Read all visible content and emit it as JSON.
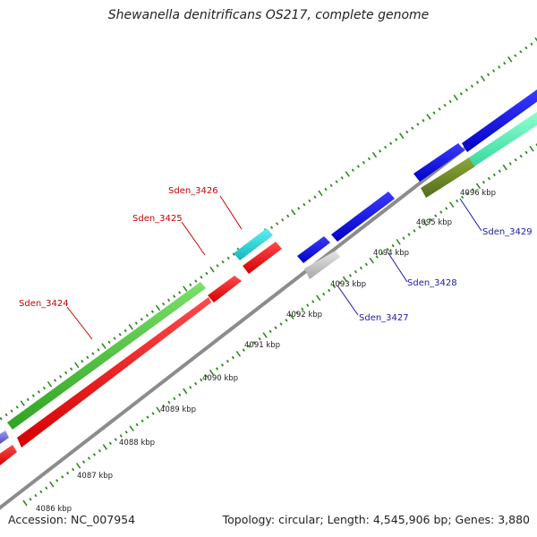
{
  "title": "Shewanella denitrificans OS217, complete genome",
  "footer": {
    "accession": "Accession: NC_007954",
    "summary": "Topology: circular; Length: 4,545,906 bp; Genes: 3,880"
  },
  "colors": {
    "backbone": "#8c8c8c",
    "tick": "#2e8b1e",
    "label_forward": "#cc0000",
    "label_reverse": "#1a1aa8"
  },
  "scale_labels": [
    "4086 kbp",
    "4087 kbp",
    "4088 kbp",
    "4089 kbp",
    "4090 kbp",
    "4091 kbp",
    "4092 kbp",
    "4093 kbp",
    "4094 kbp",
    "4095 kbp",
    "4096 kbp"
  ],
  "genes": [
    {
      "label": "Sden_3424",
      "color": "#cc0000"
    },
    {
      "label": "Sden_3425",
      "color": "#cc0000"
    },
    {
      "label": "Sden_3426",
      "color": "#cc0000"
    },
    {
      "label": "Sden_3427",
      "color": "#1a1aa8"
    },
    {
      "label": "Sden_3428",
      "color": "#1a1aa8"
    },
    {
      "label": "Sden_3429",
      "color": "#1a1aa8"
    }
  ]
}
